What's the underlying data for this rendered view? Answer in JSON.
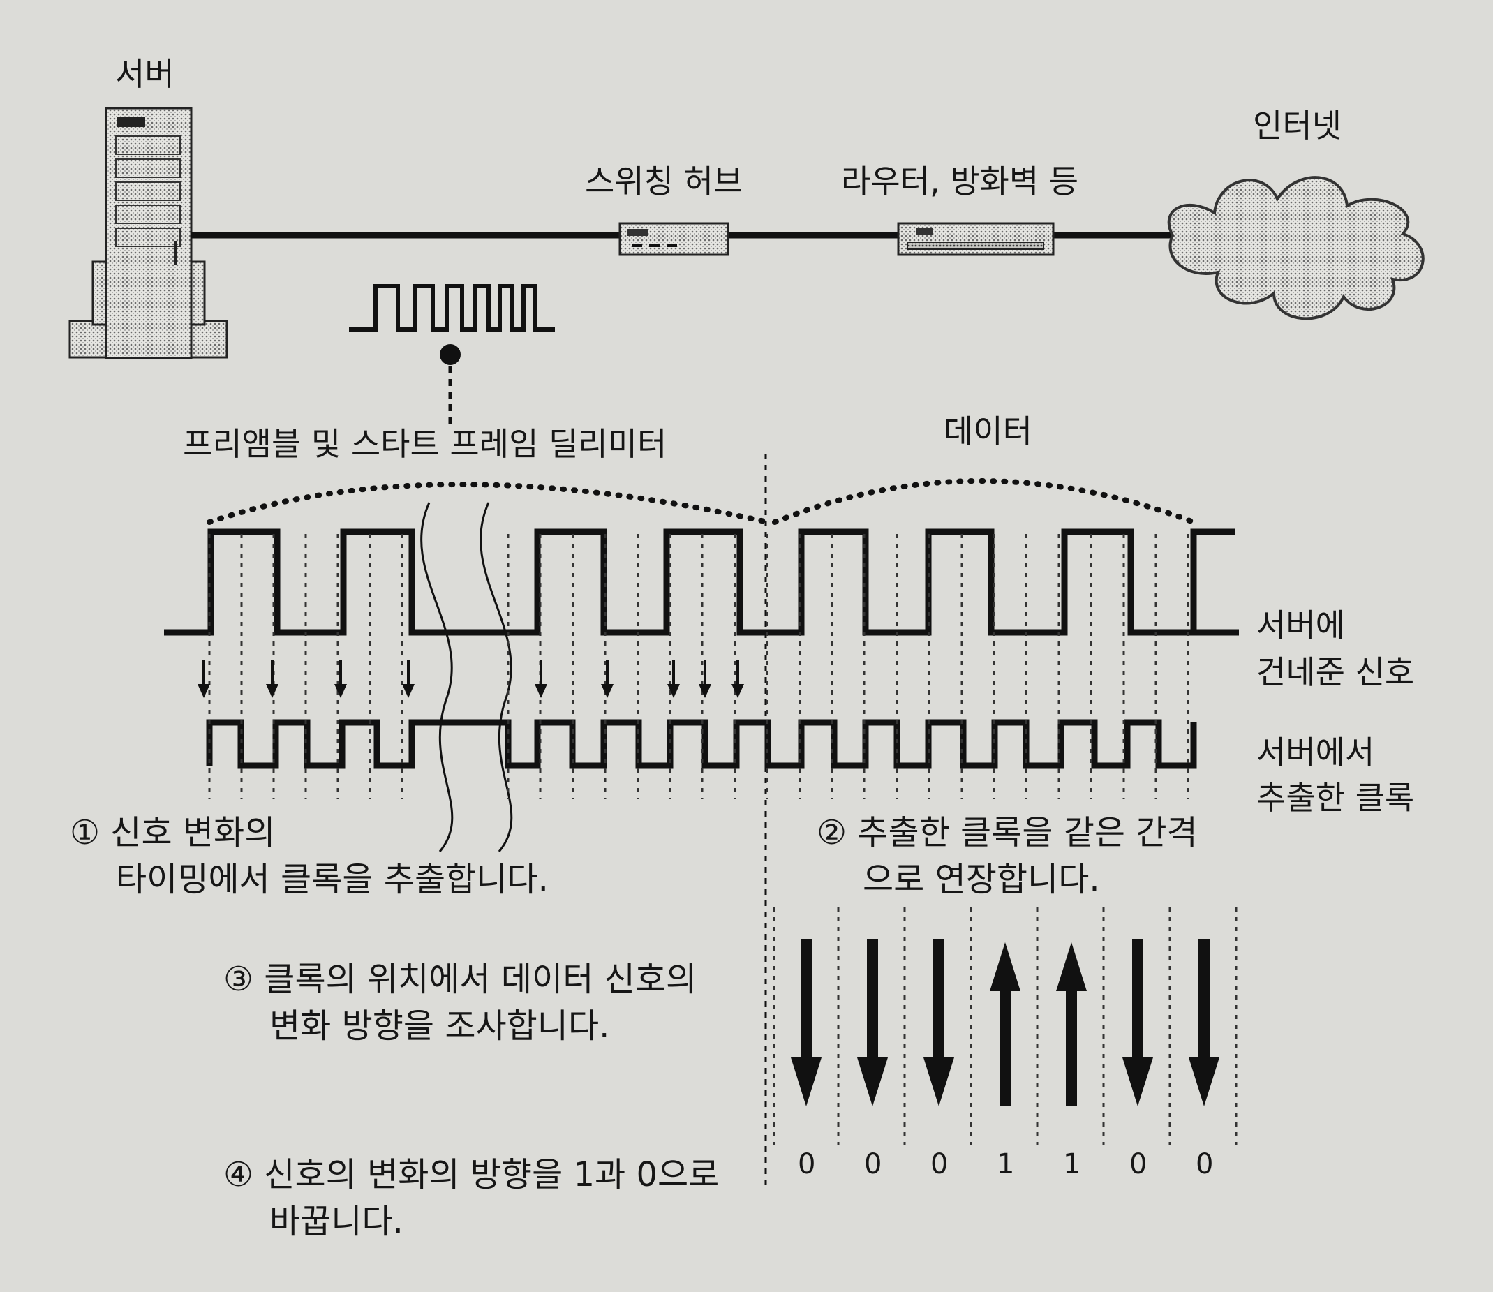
{
  "labels": {
    "server": "서버",
    "internet": "인터넷",
    "switching_hub": "스위칭 허브",
    "router_firewall": "라우터, 방화벽 등",
    "preamble": "프리앰블 및 스타트 프레임 딜리미터",
    "data": "데이터",
    "signal_from_server_line1": "서버에",
    "signal_from_server_line2": "건네준 신호",
    "extracted_clock_line1": "서버에서",
    "extracted_clock_line2": "추출한 클록"
  },
  "steps": [
    {
      "num": "①",
      "line1": "신호 변화의",
      "line2": "타이밍에서 클록을 추출합니다."
    },
    {
      "num": "②",
      "line1": "추출한 클록을 같은 간격",
      "line2": "으로 연장합니다."
    },
    {
      "num": "③",
      "line1": "클록의 위치에서 데이터 신호의",
      "line2": "변화 방향을 조사합니다."
    },
    {
      "num": "④",
      "line1": "신호의 변화의 방향을 1과 0으로",
      "line2": "바꿉니다."
    }
  ],
  "bits": [
    "0",
    "0",
    "0",
    "1",
    "1",
    "0",
    "0"
  ],
  "arrow_directions": [
    "down",
    "down",
    "down",
    "up",
    "up",
    "down",
    "down"
  ]
}
